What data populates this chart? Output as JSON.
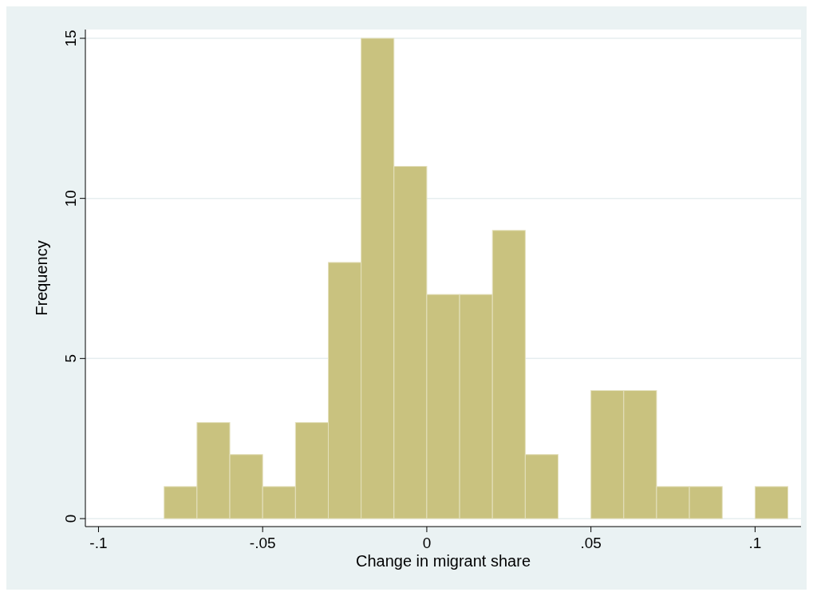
{
  "chart_data": {
    "type": "histogram",
    "xlabel": "Change in migrant share",
    "ylabel": "Frequency",
    "bins": [
      -0.08,
      -0.07,
      -0.06,
      -0.05,
      -0.04,
      -0.03,
      -0.02,
      -0.01,
      0,
      0.01,
      0.02,
      0.03,
      0.04,
      0.05,
      0.06,
      0.07,
      0.08,
      0.09,
      0.1,
      0.11
    ],
    "values": [
      1,
      3,
      2,
      1,
      3,
      8,
      15,
      11,
      7,
      7,
      9,
      2,
      0,
      4,
      4,
      1,
      1,
      0,
      1
    ],
    "color": "#c9c27f",
    "xlim": [
      -0.104,
      0.114
    ],
    "xticks": [
      {
        "value": -0.1,
        "label": "-.1"
      },
      {
        "value": -0.05,
        "label": "-.05"
      },
      0,
      {
        "value": 0.05,
        "label": ".05"
      },
      {
        "value": 0.1,
        "label": ".1"
      }
    ],
    "ylim": [
      0,
      15
    ],
    "yticks": [
      0,
      5,
      10,
      15
    ],
    "grid": "y"
  }
}
